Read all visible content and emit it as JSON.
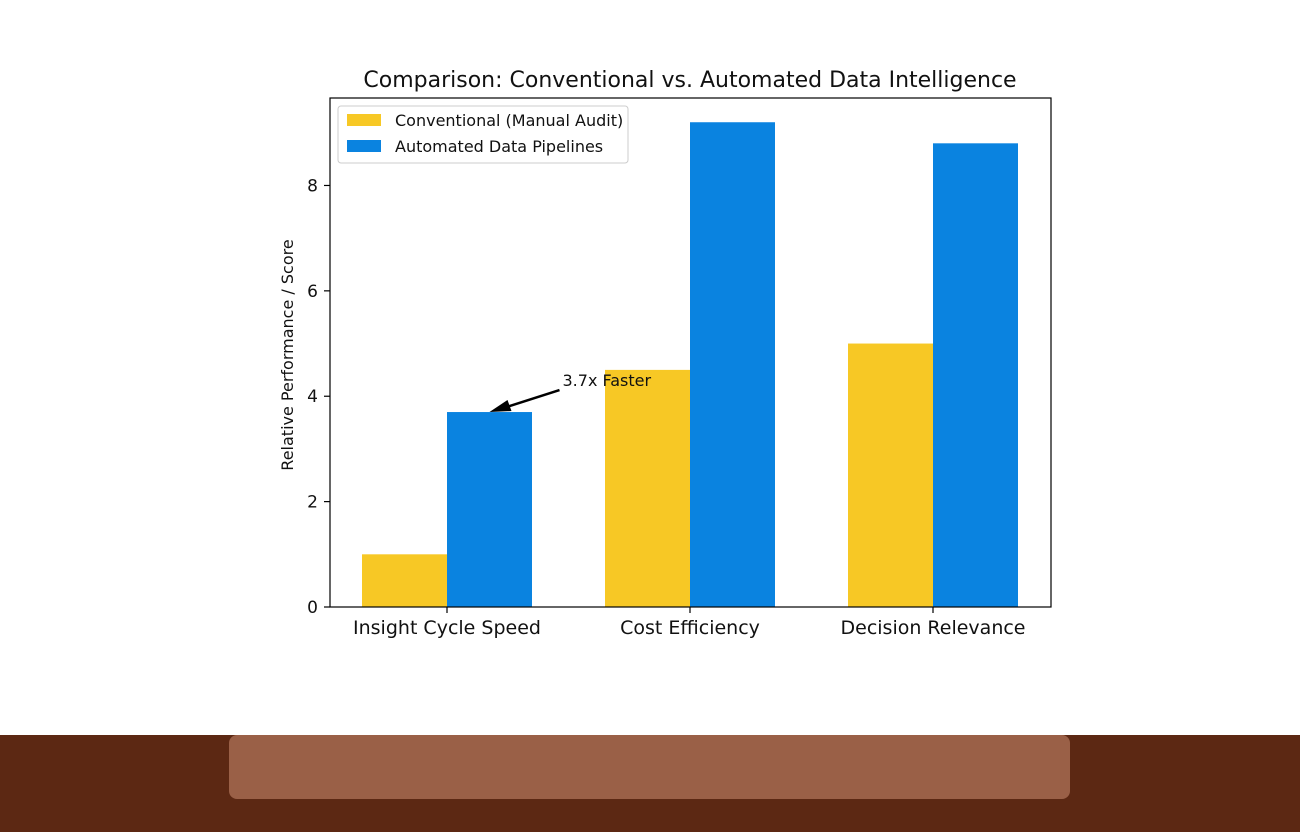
{
  "chart_data": {
    "type": "bar",
    "title": "Comparison: Conventional vs. Automated Data Intelligence",
    "xlabel": "",
    "ylabel": "Relative Performance / Score",
    "categories": [
      "Insight Cycle Speed",
      "Cost Efficiency",
      "Decision Relevance"
    ],
    "series": [
      {
        "name": "Conventional (Manual Audit)",
        "values": [
          1.0,
          4.5,
          5.0
        ],
        "color": "#f7c825"
      },
      {
        "name": "Automated Data Pipelines",
        "values": [
          3.7,
          9.2,
          8.8
        ],
        "color": "#0a83e0"
      }
    ],
    "ylim": [
      0,
      9.66
    ],
    "yticks": [
      "0",
      "2",
      "4",
      "6",
      "8"
    ],
    "grid": false,
    "legend": "top-left",
    "annotations": [
      {
        "text": "3.7x Faster",
        "category": "Insight Cycle Speed",
        "series": "Automated Data Pipelines",
        "value": 3.7
      }
    ]
  },
  "footer": {
    "band_color": "#5c2813",
    "bar_color": "#9a6047"
  }
}
